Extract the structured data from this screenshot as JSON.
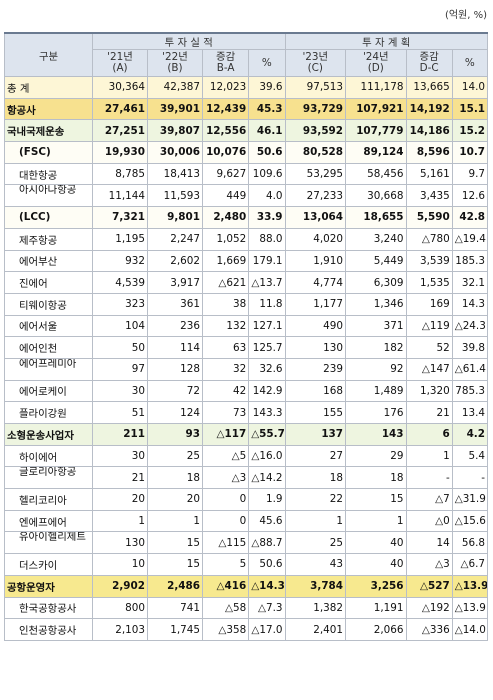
{
  "unit": "(억원, %)",
  "header": {
    "gubun": "구분",
    "group_actual": "투 자 실 적",
    "group_plan": "투 자 계 획",
    "cols": [
      {
        "top": "'21년",
        "bottom": "(A)"
      },
      {
        "top": "'22년",
        "bottom": "(B)"
      },
      {
        "top": "증감",
        "bottom": "B-A"
      },
      {
        "top": "",
        "bottom": "%"
      },
      {
        "top": "'23년",
        "bottom": "(C)"
      },
      {
        "top": "'24년",
        "bottom": "(D)"
      },
      {
        "top": "증감",
        "bottom": "D-C"
      },
      {
        "top": "",
        "bottom": "%"
      }
    ]
  },
  "rows": [
    {
      "name": "총 계",
      "style": "total",
      "indent": false,
      "v": [
        "30,364",
        "42,387",
        "12,023",
        "39.6",
        "97,513",
        "111,178",
        "13,665",
        "14.0"
      ]
    },
    {
      "name": "항공사",
      "style": "gold",
      "indent": false,
      "v": [
        "27,461",
        "39,901",
        "12,439",
        "45.3",
        "93,729",
        "107,921",
        "14,192",
        "15.1"
      ]
    },
    {
      "name": "국내국제운송",
      "style": "green",
      "indent": false,
      "v": [
        "27,251",
        "39,807",
        "12,556",
        "46.1",
        "93,592",
        "107,779",
        "14,186",
        "15.2"
      ]
    },
    {
      "name": "(FSC)",
      "style": "sub",
      "indent": true,
      "v": [
        "19,930",
        "30,006",
        "10,076",
        "50.6",
        "80,528",
        "89,124",
        "8,596",
        "10.7"
      ]
    },
    {
      "name": "대한항공",
      "style": "",
      "indent": true,
      "v": [
        "8,785",
        "18,413",
        "9,627",
        "109.6",
        "53,295",
        "58,456",
        "5,161",
        "9.7"
      ]
    },
    {
      "name": "아시아나항공",
      "style": "",
      "indent": true,
      "wrap": true,
      "v": [
        "11,144",
        "11,593",
        "449",
        "4.0",
        "27,233",
        "30,668",
        "3,435",
        "12.6"
      ]
    },
    {
      "name": "(LCC)",
      "style": "sub",
      "indent": true,
      "v": [
        "7,321",
        "9,801",
        "2,480",
        "33.9",
        "13,064",
        "18,655",
        "5,590",
        "42.8"
      ]
    },
    {
      "name": "제주항공",
      "style": "",
      "indent": true,
      "v": [
        "1,195",
        "2,247",
        "1,052",
        "88.0",
        "4,020",
        "3,240",
        "△780",
        "△19.4"
      ]
    },
    {
      "name": "에어부산",
      "style": "",
      "indent": true,
      "v": [
        "932",
        "2,602",
        "1,669",
        "179.1",
        "1,910",
        "5,449",
        "3,539",
        "185.3"
      ]
    },
    {
      "name": "진에어",
      "style": "",
      "indent": true,
      "v": [
        "4,539",
        "3,917",
        "△621",
        "△13.7",
        "4,774",
        "6,309",
        "1,535",
        "32.1"
      ]
    },
    {
      "name": "티웨이항공",
      "style": "",
      "indent": true,
      "v": [
        "323",
        "361",
        "38",
        "11.8",
        "1,177",
        "1,346",
        "169",
        "14.3"
      ]
    },
    {
      "name": "에어서울",
      "style": "",
      "indent": true,
      "v": [
        "104",
        "236",
        "132",
        "127.1",
        "490",
        "371",
        "△119",
        "△24.3"
      ]
    },
    {
      "name": "에어인천",
      "style": "",
      "indent": true,
      "v": [
        "50",
        "114",
        "63",
        "125.7",
        "130",
        "182",
        "52",
        "39.8"
      ]
    },
    {
      "name": "에어프레미아",
      "style": "",
      "indent": true,
      "wrap": true,
      "v": [
        "97",
        "128",
        "32",
        "32.6",
        "239",
        "92",
        "△147",
        "△61.4"
      ]
    },
    {
      "name": "에어로케이",
      "style": "",
      "indent": true,
      "v": [
        "30",
        "72",
        "42",
        "142.9",
        "168",
        "1,489",
        "1,320",
        "785.3"
      ]
    },
    {
      "name": "플라이강원",
      "style": "",
      "indent": true,
      "v": [
        "51",
        "124",
        "73",
        "143.3",
        "155",
        "176",
        "21",
        "13.4"
      ]
    },
    {
      "name": "소형운송사업자",
      "style": "green",
      "indent": false,
      "v": [
        "211",
        "93",
        "△117",
        "△55.7",
        "137",
        "143",
        "6",
        "4.2"
      ]
    },
    {
      "name": "하이에어",
      "style": "",
      "indent": true,
      "v": [
        "30",
        "25",
        "△5",
        "△16.0",
        "27",
        "29",
        "1",
        "5.4"
      ]
    },
    {
      "name": "글로리아항공",
      "style": "",
      "indent": true,
      "wrap": true,
      "v": [
        "21",
        "18",
        "△3",
        "△14.2",
        "18",
        "18",
        "-",
        "-"
      ]
    },
    {
      "name": "헬리코리아",
      "style": "",
      "indent": true,
      "v": [
        "20",
        "20",
        "0",
        "1.9",
        "22",
        "15",
        "△7",
        "△31.9"
      ]
    },
    {
      "name": "엔에프에어",
      "style": "",
      "indent": true,
      "v": [
        "1",
        "1",
        "0",
        "45.6",
        "1",
        "1",
        "△0",
        "△15.6"
      ]
    },
    {
      "name": "유아이헬리제트",
      "style": "",
      "indent": true,
      "wrap": true,
      "v": [
        "130",
        "15",
        "△115",
        "△88.7",
        "25",
        "40",
        "14",
        "56.8"
      ]
    },
    {
      "name": "더스카이",
      "style": "",
      "indent": true,
      "v": [
        "10",
        "15",
        "5",
        "50.6",
        "43",
        "40",
        "△3",
        "△6.7"
      ]
    },
    {
      "name": "공항운영자",
      "style": "yellow",
      "indent": false,
      "v": [
        "2,902",
        "2,486",
        "△416",
        "△14.3",
        "3,784",
        "3,256",
        "△527",
        "△13.9"
      ]
    },
    {
      "name": "한국공항공사",
      "style": "",
      "indent": true,
      "v": [
        "800",
        "741",
        "△58",
        "△7.3",
        "1,382",
        "1,191",
        "△192",
        "△13.9"
      ]
    },
    {
      "name": "인천공항공사",
      "style": "",
      "indent": true,
      "v": [
        "2,103",
        "1,745",
        "△358",
        "△17.0",
        "2,401",
        "2,066",
        "△336",
        "△14.0"
      ]
    }
  ]
}
